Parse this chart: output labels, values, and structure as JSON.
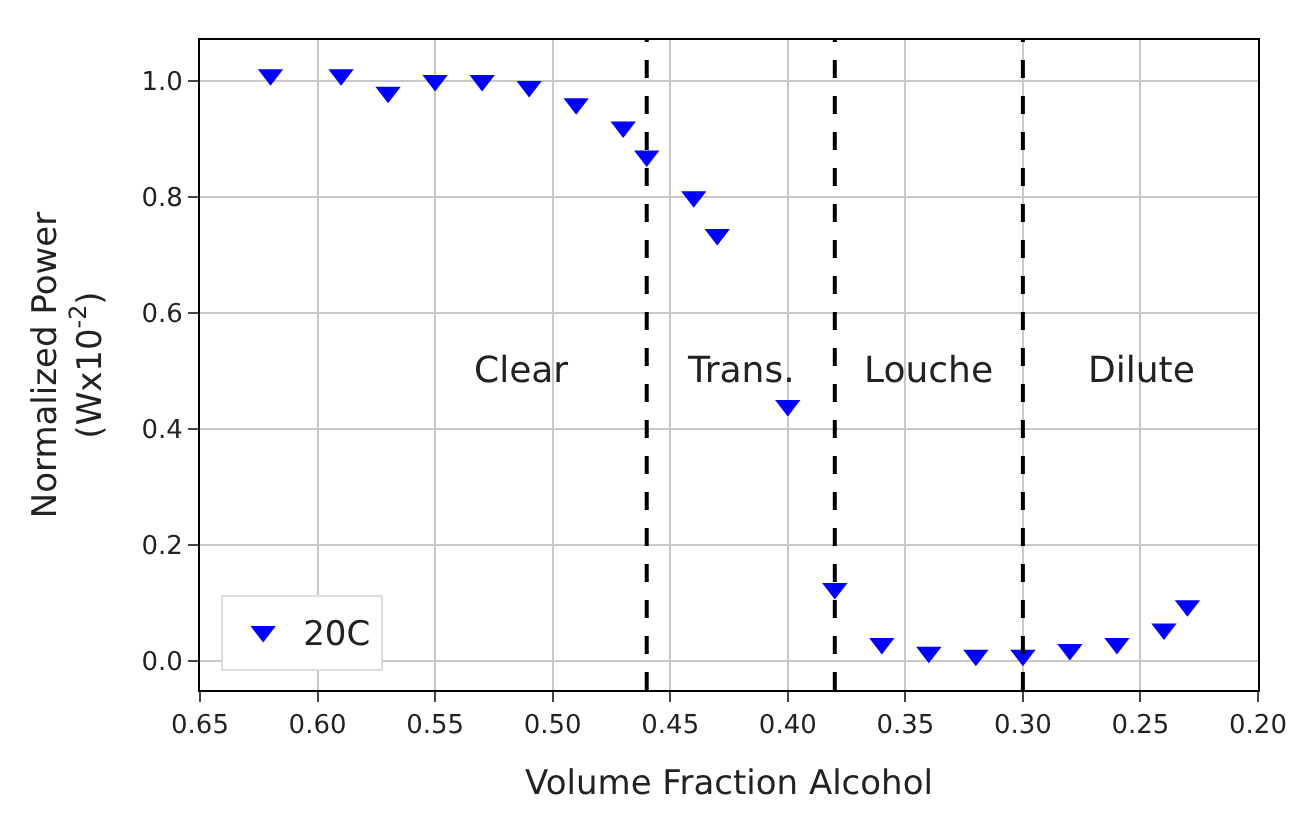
{
  "chart_data": {
    "type": "scatter",
    "xlabel": "Volume Fraction Alcohol",
    "ylabel": "Normalized Power\n(Wx10$^{-2}$)",
    "x": [
      0.62,
      0.59,
      0.57,
      0.55,
      0.53,
      0.51,
      0.49,
      0.47,
      0.46,
      0.44,
      0.43,
      0.4,
      0.38,
      0.36,
      0.34,
      0.32,
      0.3,
      0.28,
      0.26,
      0.24,
      0.23
    ],
    "series": [
      {
        "name": "20C",
        "color": "#0000ff",
        "values": [
          1.01,
          1.01,
          0.98,
          1.0,
          1.0,
          0.99,
          0.96,
          0.92,
          0.87,
          0.8,
          0.735,
          0.44,
          0.125,
          0.03,
          0.015,
          0.01,
          0.01,
          0.02,
          0.03,
          0.055,
          0.095
        ]
      }
    ],
    "marker": "triangle",
    "xlim": [
      0.65,
      0.2
    ],
    "xticks": [
      {
        "value": 0.65,
        "label": "0.65"
      },
      {
        "value": 0.6,
        "label": "0.60"
      },
      {
        "value": 0.55,
        "label": "0.55"
      },
      {
        "value": 0.5,
        "label": "0.50"
      },
      {
        "value": 0.45,
        "label": "0.45"
      },
      {
        "value": 0.4,
        "label": "0.40"
      },
      {
        "value": 0.35,
        "label": "0.35"
      },
      {
        "value": 0.3,
        "label": "0.30"
      },
      {
        "value": 0.25,
        "label": "0.25"
      },
      {
        "value": 0.2,
        "label": "0.20"
      }
    ],
    "ylim": [
      -0.05,
      1.07
    ],
    "yticks": [
      {
        "value": 0,
        "label": "0.0"
      },
      {
        "value": 0.2,
        "label": "0.2"
      },
      {
        "value": 0.4,
        "label": "0.4"
      },
      {
        "value": 0.6,
        "label": "0.6"
      },
      {
        "value": 0.8,
        "label": "0.8"
      },
      {
        "value": 1.0,
        "label": "1.0"
      }
    ],
    "grid": true,
    "legend": "bottom left",
    "ref_lines": [
      {
        "axis": "x",
        "value": 0.46,
        "label": null,
        "color": "#000000",
        "line_style": "dashed"
      },
      {
        "axis": "x",
        "value": 0.38,
        "label": null,
        "color": "#000000",
        "line_style": "dashed"
      },
      {
        "axis": "x",
        "value": 0.3,
        "label": null,
        "color": "#000000",
        "line_style": "dashed"
      }
    ],
    "annotations": [
      "Clear",
      "Trans.",
      "Louche",
      "Dilute"
    ]
  }
}
